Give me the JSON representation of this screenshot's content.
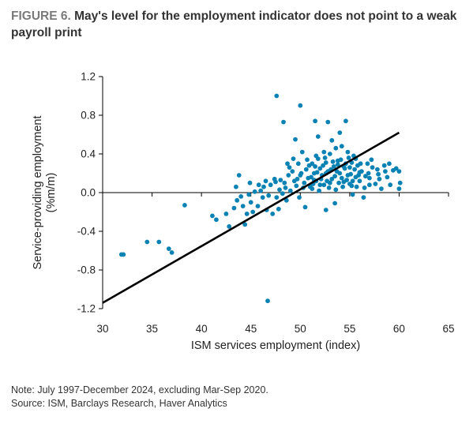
{
  "figure": {
    "label": "FIGURE 6.",
    "title": "May's level for the employment indicator does not point to a weak payroll print"
  },
  "footer": {
    "note": "Note: July 1997-December 2024, excluding Mar-Sep 2020.",
    "source": "Source: ISM, Barclays Research, Haver Analytics"
  },
  "colors": {
    "points": "#0b82b4",
    "fit_line": "#000000",
    "axis": "#000000"
  },
  "chart_data": {
    "type": "scatter",
    "xlabel": "ISM services employment (index)",
    "ylabel_lines": [
      "Service-providing employment",
      "(%m/m)"
    ],
    "xlim": [
      30,
      65
    ],
    "ylim": [
      -1.2,
      1.2
    ],
    "xticks": [
      30,
      35,
      40,
      45,
      50,
      55,
      60,
      65
    ],
    "xtick_labels": [
      "30",
      "35",
      "40",
      "45",
      "50",
      "55",
      "60",
      "65"
    ],
    "yticks": [
      1.2,
      0.8,
      0.4,
      0.0,
      -0.4,
      -0.8,
      -1.2
    ],
    "ytick_labels": [
      "1.2",
      "0.8",
      "0.4",
      "0.0",
      "-0.4",
      "-0.8",
      "-1.2"
    ],
    "grid": false,
    "fit_line": {
      "x": [
        30,
        60
      ],
      "y": [
        -1.14,
        0.62
      ]
    },
    "points": [
      [
        31.9,
        -0.64
      ],
      [
        32.1,
        -0.64
      ],
      [
        34.5,
        -0.51
      ],
      [
        35.7,
        -0.51
      ],
      [
        36.7,
        -0.58
      ],
      [
        37.0,
        -0.62
      ],
      [
        38.3,
        -0.13
      ],
      [
        41.1,
        -0.24
      ],
      [
        41.5,
        -0.28
      ],
      [
        42.5,
        -0.22
      ],
      [
        42.8,
        -0.35
      ],
      [
        43.3,
        -0.16
      ],
      [
        43.6,
        -0.08
      ],
      [
        43.8,
        0.18
      ],
      [
        43.5,
        0.06
      ],
      [
        44.0,
        -0.04
      ],
      [
        44.2,
        -0.14
      ],
      [
        44.4,
        -0.33
      ],
      [
        44.6,
        -0.22
      ],
      [
        44.8,
        -0.02
      ],
      [
        45.0,
        -0.1
      ],
      [
        45.2,
        -0.2
      ],
      [
        45.4,
        0.01
      ],
      [
        45.7,
        -0.14
      ],
      [
        46.0,
        0.02
      ],
      [
        46.2,
        -0.05
      ],
      [
        46.5,
        0.12
      ],
      [
        46.6,
        -0.18
      ],
      [
        46.8,
        -0.03
      ],
      [
        47.0,
        0.08
      ],
      [
        47.2,
        -0.22
      ],
      [
        47.4,
        0.14
      ],
      [
        47.6,
        -0.05
      ],
      [
        47.8,
        -0.17
      ],
      [
        47.6,
        1.0
      ],
      [
        48.0,
        0.13
      ],
      [
        48.2,
        -0.01
      ],
      [
        48.4,
        0.1
      ],
      [
        48.6,
        -0.08
      ],
      [
        48.8,
        0.18
      ],
      [
        48.3,
        0.73
      ],
      [
        49.0,
        0.02
      ],
      [
        49.2,
        0.22
      ],
      [
        49.4,
        0.12
      ],
      [
        49.6,
        0.07
      ],
      [
        49.8,
        0.3
      ],
      [
        49.5,
        0.55
      ],
      [
        50.0,
        0.18
      ],
      [
        50.2,
        0.42
      ],
      [
        50.4,
        0.1
      ],
      [
        50.6,
        0.24
      ],
      [
        50.8,
        0.15
      ],
      [
        50.0,
        0.9
      ],
      [
        51.0,
        0.06
      ],
      [
        51.2,
        0.3
      ],
      [
        51.4,
        0.2
      ],
      [
        51.6,
        0.12
      ],
      [
        51.8,
        0.35
      ],
      [
        52.0,
        0.25
      ],
      [
        51.5,
        0.74
      ],
      [
        51.8,
        0.58
      ],
      [
        52.2,
        0.18
      ],
      [
        52.4,
        0.08
      ],
      [
        52.6,
        0.31
      ],
      [
        52.8,
        0.22
      ],
      [
        53.0,
        0.4
      ],
      [
        53.2,
        0.14
      ],
      [
        52.8,
        0.73
      ],
      [
        53.4,
        0.27
      ],
      [
        53.6,
        0.03
      ],
      [
        53.8,
        0.33
      ],
      [
        54.0,
        0.2
      ],
      [
        54.2,
        0.48
      ],
      [
        54.4,
        0.11
      ],
      [
        54.6,
        0.3
      ],
      [
        54.8,
        0.18
      ],
      [
        54.6,
        0.74
      ],
      [
        55.0,
        0.26
      ],
      [
        55.2,
        0.07
      ],
      [
        55.4,
        0.38
      ],
      [
        55.6,
        0.16
      ],
      [
        55.8,
        0.28
      ],
      [
        56.0,
        0.12
      ],
      [
        56.2,
        0.22
      ],
      [
        56.5,
        0.05
      ],
      [
        56.8,
        0.3
      ],
      [
        57.0,
        0.15
      ],
      [
        57.3,
        0.26
      ],
      [
        57.6,
        0.09
      ],
      [
        57.9,
        0.19
      ],
      [
        58.2,
        0.04
      ],
      [
        58.5,
        0.28
      ],
      [
        58.8,
        0.16
      ],
      [
        59.1,
        0.08
      ],
      [
        59.4,
        0.23
      ],
      [
        59.7,
        0.25
      ],
      [
        60.0,
        0.22
      ],
      [
        60.0,
        0.04
      ],
      [
        60.1,
        0.1
      ],
      [
        46.7,
        -1.12
      ],
      [
        52.6,
        -0.18
      ],
      [
        50.5,
        -0.15
      ],
      [
        53.5,
        -0.11
      ],
      [
        55.3,
        -0.02
      ],
      [
        56.4,
        -0.05
      ],
      [
        51.9,
        0.02
      ],
      [
        52.1,
        0.14
      ],
      [
        52.3,
        0.28
      ],
      [
        52.5,
        0.36
      ],
      [
        52.7,
        0.12
      ],
      [
        52.9,
        0.05
      ],
      [
        53.1,
        0.24
      ],
      [
        53.3,
        0.32
      ],
      [
        53.5,
        0.17
      ],
      [
        53.7,
        0.22
      ],
      [
        53.9,
        0.1
      ],
      [
        54.1,
        0.34
      ],
      [
        54.3,
        0.06
      ],
      [
        54.5,
        0.25
      ],
      [
        54.7,
        0.13
      ],
      [
        54.9,
        0.36
      ],
      [
        55.1,
        0.19
      ],
      [
        55.3,
        0.12
      ],
      [
        55.5,
        0.24
      ],
      [
        55.7,
        0.06
      ],
      [
        55.9,
        0.18
      ],
      [
        50.9,
        0.28
      ],
      [
        51.1,
        0.16
      ],
      [
        51.3,
        0.09
      ],
      [
        51.5,
        0.27
      ],
      [
        51.7,
        0.21
      ],
      [
        50.3,
        0.05
      ],
      [
        49.7,
        0.14
      ],
      [
        49.9,
        -0.05
      ],
      [
        48.9,
        0.26
      ],
      [
        48.5,
        0.05
      ],
      [
        47.9,
        0.03
      ],
      [
        47.5,
        0.11
      ],
      [
        46.3,
        0.06
      ],
      [
        45.8,
        0.08
      ],
      [
        44.9,
        0.1
      ],
      [
        53.2,
        0.54
      ],
      [
        54.0,
        0.62
      ],
      [
        53.6,
        0.46
      ],
      [
        54.8,
        0.42
      ],
      [
        55.6,
        0.35
      ],
      [
        56.1,
        0.3
      ],
      [
        57.2,
        0.34
      ],
      [
        56.9,
        0.2
      ],
      [
        56.6,
        0.17
      ],
      [
        57.8,
        0.24
      ],
      [
        58.0,
        0.14
      ],
      [
        58.6,
        0.22
      ],
      [
        59.0,
        0.3
      ],
      [
        52.4,
        0.42
      ],
      [
        51.6,
        0.38
      ],
      [
        50.7,
        0.34
      ],
      [
        49.3,
        0.35
      ],
      [
        48.7,
        0.3
      ],
      [
        50.1,
        0.2
      ],
      [
        51.2,
        0.04
      ],
      [
        52.0,
        0.08
      ],
      [
        53.0,
        0.1
      ],
      [
        54.2,
        0.15
      ],
      [
        55.0,
        0.09
      ],
      [
        56.0,
        0.21
      ],
      [
        57.0,
        0.08
      ],
      [
        55.2,
        0.31
      ],
      [
        54.4,
        0.27
      ],
      [
        53.8,
        0.29
      ],
      [
        52.6,
        0.2
      ],
      [
        51.4,
        0.13
      ]
    ]
  }
}
